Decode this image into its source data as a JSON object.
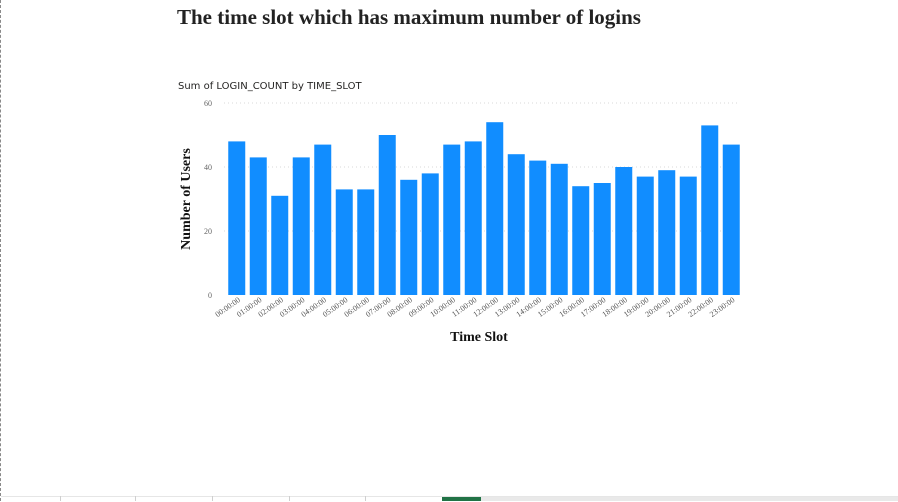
{
  "page": {
    "title": "The time slot which has maximum number of logins"
  },
  "chart_data": {
    "type": "bar",
    "title": "Sum of LOGIN_COUNT by TIME_SLOT",
    "xlabel": "Time Slot",
    "ylabel": "Number of Users",
    "ylim": [
      0,
      60
    ],
    "yticks": [
      0,
      20,
      40,
      60
    ],
    "grid": "dotted-horizontal",
    "bar_color": "#118DFF",
    "categories": [
      "00:00:00",
      "01:00:00",
      "02:00:00",
      "03:00:00",
      "04:00:00",
      "05:00:00",
      "06:00:00",
      "07:00:00",
      "08:00:00",
      "09:00:00",
      "10:00:00",
      "11:00:00",
      "12:00:00",
      "13:00:00",
      "14:00:00",
      "15:00:00",
      "16:00:00",
      "17:00:00",
      "18:00:00",
      "19:00:00",
      "20:00:00",
      "21:00:00",
      "22:00:00",
      "23:00:00"
    ],
    "values": [
      48,
      43,
      31,
      43,
      47,
      33,
      33,
      50,
      36,
      38,
      47,
      48,
      54,
      44,
      42,
      41,
      34,
      35,
      40,
      37,
      39,
      37,
      53,
      47
    ]
  },
  "colors": {
    "accent": "#118DFF",
    "active_tab": "#217346"
  }
}
